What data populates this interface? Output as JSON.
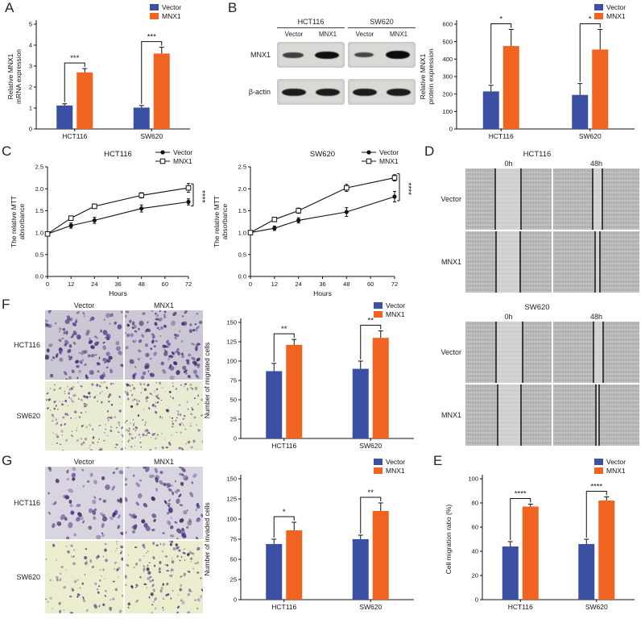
{
  "colors": {
    "vector": "#3b4fa3",
    "mnx1": "#f26322",
    "axis": "#111111"
  },
  "panels": {
    "A": {
      "label": "A"
    },
    "B": {
      "label": "B",
      "blot": {
        "cell_lines": [
          "HCT116",
          "SW620"
        ],
        "lane_labels": [
          "Vector",
          "MNX1",
          "Vector",
          "MNX1"
        ],
        "row_labels": [
          "MNX1",
          "β-actin"
        ]
      }
    },
    "C": {
      "label": "C"
    },
    "D": {
      "label": "D",
      "blocks": [
        {
          "title": "HCT116",
          "time_labels": [
            "0h",
            "48h"
          ],
          "row_labels": [
            "Vector",
            "MNX1"
          ]
        },
        {
          "title": "SW620",
          "time_labels": [
            "0h",
            "48h"
          ],
          "row_labels": [
            "Vector",
            "MNX1"
          ]
        }
      ]
    },
    "E": {
      "label": "E"
    },
    "F": {
      "label": "F",
      "col_labels": [
        "Vector",
        "MNX1"
      ],
      "row_labels": [
        "HCT116",
        "SW620"
      ]
    },
    "G": {
      "label": "G",
      "col_labels": [
        "Vector",
        "MNX1"
      ],
      "row_labels": [
        "HCT116",
        "SW620"
      ]
    }
  },
  "chart_data": [
    {
      "id": "chartA",
      "type": "bar",
      "title": "",
      "ylabel": "Relative MNX1\nmRNA expression",
      "categories": [
        "HCT116",
        "SW620"
      ],
      "series": [
        {
          "name": "Vector",
          "color": "#3b4fa3",
          "values": [
            1.12,
            1.02
          ],
          "errors": [
            0.08,
            0.1
          ]
        },
        {
          "name": "MNX1",
          "color": "#f26322",
          "values": [
            2.7,
            3.6
          ],
          "errors": [
            0.18,
            0.3
          ]
        }
      ],
      "ylim": [
        0,
        5
      ],
      "yticks": [
        "0",
        "1",
        "2",
        "3",
        "4",
        "5"
      ],
      "sig": [
        "***",
        "***"
      ],
      "legend": true
    },
    {
      "id": "chartB",
      "type": "bar",
      "title": "",
      "ylabel": "Relative MNX1\nprotein expression",
      "categories": [
        "HCT116",
        "SW620"
      ],
      "series": [
        {
          "name": "Vector",
          "color": "#3b4fa3",
          "values": [
            215,
            195
          ],
          "errors": [
            35,
            65
          ]
        },
        {
          "name": "MNX1",
          "color": "#f26322",
          "values": [
            475,
            455
          ],
          "errors": [
            95,
            115
          ]
        }
      ],
      "ylim": [
        0,
        600
      ],
      "yticks": [
        "0",
        "100",
        "200",
        "300",
        "400",
        "500",
        "600"
      ],
      "sig": [
        "*",
        "*"
      ],
      "legend": true
    },
    {
      "id": "chartC1",
      "type": "line",
      "title": "HCT116",
      "xlabel": "Hours",
      "ylabel": "The relative MTT\nabsorbance",
      "x": [
        0,
        12,
        24,
        48,
        72
      ],
      "xlim": [
        0,
        72
      ],
      "xticks": [
        "0",
        "12",
        "24",
        "36",
        "48",
        "60",
        "72"
      ],
      "series": [
        {
          "name": "Vector",
          "marker": "circle-filled",
          "values": [
            0.97,
            1.16,
            1.28,
            1.55,
            1.7
          ],
          "errors": [
            0.03,
            0.06,
            0.07,
            0.08,
            0.07
          ]
        },
        {
          "name": "MNX1",
          "marker": "square-open",
          "values": [
            0.97,
            1.33,
            1.6,
            1.85,
            2.02
          ],
          "errors": [
            0.03,
            0.05,
            0.05,
            0.06,
            0.1
          ]
        }
      ],
      "ylim": [
        0,
        2.5
      ],
      "yticks": [
        "0.0",
        "0.5",
        "1.0",
        "1.5",
        "2.0",
        "2.5"
      ],
      "sig_label": "****"
    },
    {
      "id": "chartC2",
      "type": "line",
      "title": "SW620",
      "xlabel": "Hours",
      "ylabel": "The relative MTT\nabsorbance",
      "x": [
        0,
        12,
        24,
        48,
        72
      ],
      "xlim": [
        0,
        72
      ],
      "xticks": [
        "0",
        "12",
        "24",
        "36",
        "48",
        "60",
        "72"
      ],
      "series": [
        {
          "name": "Vector",
          "marker": "circle-filled",
          "values": [
            1.0,
            1.1,
            1.28,
            1.47,
            1.82
          ],
          "errors": [
            0.03,
            0.05,
            0.06,
            0.1,
            0.12
          ]
        },
        {
          "name": "MNX1",
          "marker": "square-open",
          "values": [
            1.0,
            1.3,
            1.5,
            2.02,
            2.25
          ],
          "errors": [
            0.03,
            0.05,
            0.06,
            0.08,
            0.07
          ]
        }
      ],
      "ylim": [
        0,
        2.5
      ],
      "yticks": [
        "0.0",
        "0.5",
        "1.0",
        "1.5",
        "2.0",
        "2.5"
      ],
      "sig_label": "****"
    },
    {
      "id": "chartF",
      "type": "bar",
      "title": "",
      "ylabel": "Number of migrated cells",
      "categories": [
        "HCT116",
        "SW620"
      ],
      "series": [
        {
          "name": "Vector",
          "color": "#3b4fa3",
          "values": [
            87,
            90
          ],
          "errors": [
            10,
            10
          ]
        },
        {
          "name": "MNX1",
          "color": "#f26322",
          "values": [
            121,
            130
          ],
          "errors": [
            7,
            9
          ]
        }
      ],
      "ylim": [
        0,
        150
      ],
      "yticks": [
        "0",
        "25",
        "50",
        "75",
        "100",
        "125",
        "150"
      ],
      "sig": [
        "**",
        "**"
      ],
      "legend": true
    },
    {
      "id": "chartG",
      "type": "bar",
      "title": "",
      "ylabel": "Number of invaded cells",
      "categories": [
        "HCT116",
        "SW620"
      ],
      "series": [
        {
          "name": "Vector",
          "color": "#3b4fa3",
          "values": [
            69,
            75
          ],
          "errors": [
            6,
            5
          ]
        },
        {
          "name": "MNX1",
          "color": "#f26322",
          "values": [
            86,
            110
          ],
          "errors": [
            10,
            10
          ]
        }
      ],
      "ylim": [
        0,
        150
      ],
      "yticks": [
        "0",
        "25",
        "50",
        "75",
        "100",
        "125",
        "150"
      ],
      "sig": [
        "*",
        "**"
      ],
      "legend": true
    },
    {
      "id": "chartE",
      "type": "bar",
      "title": "",
      "ylabel": "Cell migration ratio (%)",
      "categories": [
        "HCT116",
        "SW620"
      ],
      "series": [
        {
          "name": "Vector",
          "color": "#3b4fa3",
          "values": [
            44,
            46
          ],
          "errors": [
            4,
            4
          ]
        },
        {
          "name": "MNX1",
          "color": "#f26322",
          "values": [
            77,
            82
          ],
          "errors": [
            2,
            3
          ]
        }
      ],
      "ylim": [
        0,
        100
      ],
      "yticks": [
        "0",
        "20",
        "40",
        "60",
        "80",
        "100"
      ],
      "sig": [
        "****",
        "****"
      ],
      "legend": true
    }
  ]
}
